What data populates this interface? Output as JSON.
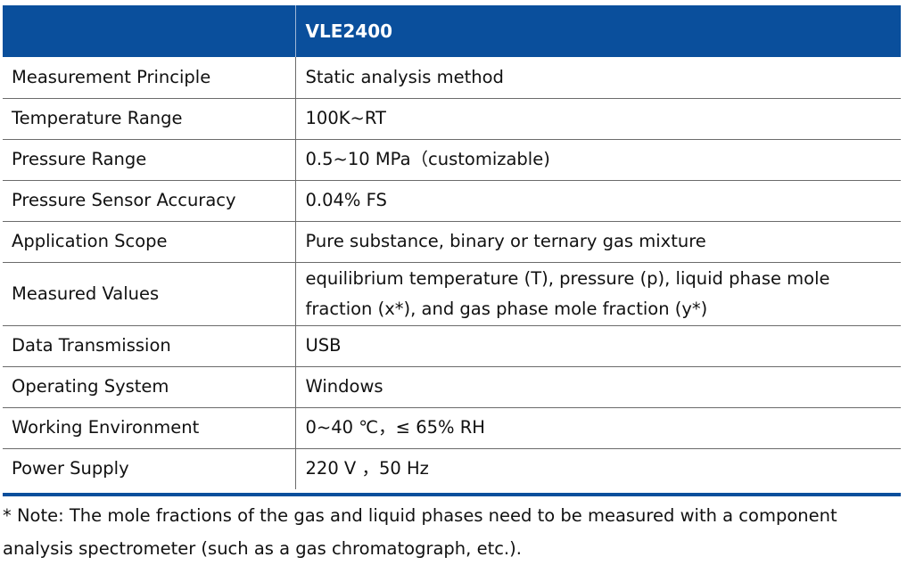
{
  "table": {
    "header": {
      "col1": "",
      "col2": "VLE2400"
    },
    "rows": [
      {
        "param": "Measurement Principle",
        "value": "Static analysis method"
      },
      {
        "param": "Temperature Range",
        "value": "100K~RT"
      },
      {
        "param": "Pressure Range",
        "value": "0.5~10 MPa（customizable)"
      },
      {
        "param": "Pressure Sensor Accuracy",
        "value": "0.04% FS"
      },
      {
        "param": "Application Scope",
        "value": "Pure substance, binary or ternary gas mixture"
      },
      {
        "param": "Measured Values",
        "value": "equilibrium temperature (T), pressure (p), liquid phase mole fraction (x*), and gas phase mole fraction (y*)"
      },
      {
        "param": "Data Transmission",
        "value": "USB"
      },
      {
        "param": "Operating System",
        "value": "Windows"
      },
      {
        "param": "Working Environment",
        "value": "0~40 ℃，≤ 65% RH"
      },
      {
        "param": "Power Supply",
        "value": "220 V ，50 Hz"
      }
    ]
  },
  "note": "* Note: The mole fractions of the gas and liquid phases need to be measured with a component analysis spectrometer (such as a gas chromatograph, etc.).",
  "colors": {
    "header_bg": "#0a4f9c",
    "header_text": "#ffffff",
    "grid_line": "#6b6b6b",
    "text": "#111111"
  }
}
